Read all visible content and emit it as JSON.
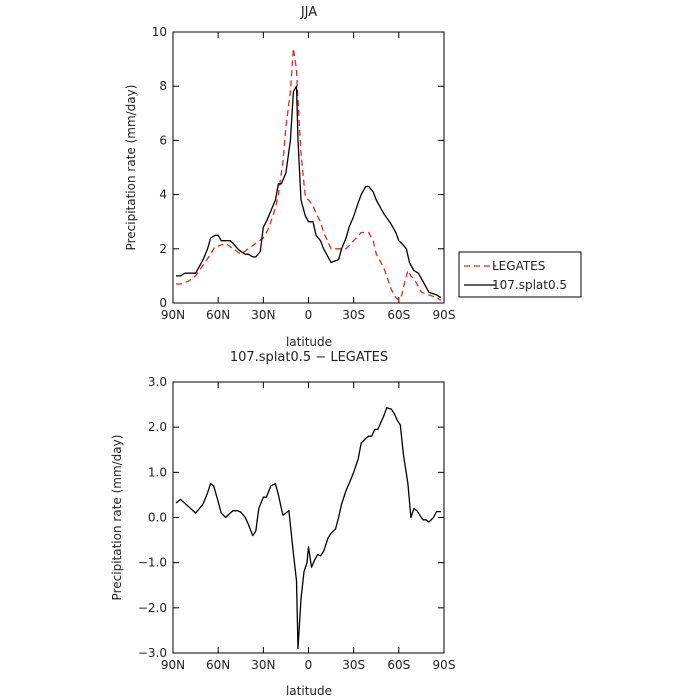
{
  "chart_data": [
    {
      "type": "line",
      "title": "JJA",
      "xlabel": "latitude",
      "ylabel": "Precipitation rate (mm/day)",
      "xlim": [
        90,
        -90
      ],
      "ylim": [
        0,
        10
      ],
      "x_ticks": [
        90,
        60,
        30,
        0,
        -30,
        -60,
        -90
      ],
      "x_tick_labels": [
        "90N",
        "60N",
        "30N",
        "0",
        "30S",
        "60S",
        "90S"
      ],
      "y_ticks": [
        0,
        2,
        4,
        6,
        8,
        10
      ],
      "y_tick_labels": [
        "0",
        "2",
        "4",
        "6",
        "8",
        "10"
      ],
      "legend": "right",
      "series": [
        {
          "name": "LEGATES",
          "color": "#e0281e",
          "dash": "dashed",
          "x": [
            88,
            85,
            80,
            75,
            70,
            65,
            62,
            60,
            55,
            50,
            45,
            40,
            35,
            30,
            27,
            25,
            22,
            20,
            17,
            15,
            12,
            10,
            8,
            7,
            5,
            3,
            2,
            0,
            -3,
            -5,
            -8,
            -10,
            -15,
            -20,
            -25,
            -30,
            -35,
            -40,
            -43,
            -45,
            -50,
            -55,
            -58,
            -60,
            -62,
            -64,
            -66,
            -68,
            -70,
            -73,
            -75,
            -80,
            -85,
            -88
          ],
          "y": [
            0.7,
            0.7,
            0.8,
            1.0,
            1.4,
            1.8,
            2.1,
            2.1,
            2.2,
            2.0,
            1.8,
            2.0,
            2.2,
            2.4,
            2.7,
            3.0,
            3.5,
            4.0,
            5.2,
            6.5,
            7.8,
            9.4,
            8.6,
            7.5,
            5.5,
            4.4,
            3.9,
            3.8,
            3.6,
            3.3,
            3.0,
            2.6,
            2.0,
            2.0,
            2.0,
            2.3,
            2.6,
            2.6,
            2.3,
            1.8,
            1.3,
            0.5,
            0.2,
            0.1,
            0.3,
            0.8,
            1.2,
            1.0,
            0.9,
            0.6,
            0.4,
            0.3,
            0.2,
            0.1
          ]
        },
        {
          "name": "107.splat0.5",
          "color": "#000000",
          "dash": "solid",
          "x": [
            88,
            85,
            82,
            80,
            75,
            73,
            70,
            67,
            65,
            62,
            60,
            58,
            55,
            52,
            50,
            47,
            45,
            42,
            40,
            37,
            35,
            32,
            30,
            28,
            25,
            22,
            20,
            18,
            15,
            12,
            10,
            8,
            7,
            5,
            3,
            2,
            0,
            -3,
            -5,
            -8,
            -10,
            -15,
            -20,
            -22,
            -25,
            -27,
            -30,
            -33,
            -35,
            -38,
            -40,
            -43,
            -45,
            -48,
            -50,
            -55,
            -58,
            -60,
            -62,
            -65,
            -67,
            -70,
            -73,
            -75,
            -80,
            -85,
            -88
          ],
          "y": [
            1.0,
            1.0,
            1.1,
            1.1,
            1.1,
            1.3,
            1.6,
            2.0,
            2.4,
            2.5,
            2.5,
            2.3,
            2.3,
            2.3,
            2.2,
            2.0,
            1.9,
            1.8,
            1.8,
            1.7,
            1.7,
            1.9,
            2.8,
            3.0,
            3.4,
            3.8,
            4.4,
            4.4,
            4.8,
            6.0,
            7.8,
            8.0,
            6.0,
            3.8,
            3.4,
            3.2,
            3.0,
            3.0,
            2.5,
            2.3,
            2.0,
            1.5,
            1.6,
            2.0,
            2.4,
            2.8,
            3.2,
            3.7,
            4.0,
            4.3,
            4.3,
            4.1,
            3.8,
            3.5,
            3.3,
            2.9,
            2.6,
            2.3,
            2.2,
            2.0,
            1.5,
            1.2,
            1.1,
            0.9,
            0.4,
            0.3,
            0.2
          ]
        }
      ]
    },
    {
      "type": "line",
      "title": "107.splat0.5 − LEGATES",
      "xlabel": "latitude",
      "ylabel": "Precipitation rate (mm/day)",
      "xlim": [
        90,
        -90
      ],
      "ylim": [
        -3,
        3
      ],
      "x_ticks": [
        90,
        60,
        30,
        0,
        -30,
        -60,
        -90
      ],
      "x_tick_labels": [
        "90N",
        "60N",
        "30N",
        "0",
        "30S",
        "60S",
        "90S"
      ],
      "y_ticks": [
        -3,
        -2,
        -1,
        0,
        1,
        2,
        3
      ],
      "y_tick_labels": [
        "−3.0",
        "−2.0",
        "−1.0",
        "0.0",
        "1.0",
        "2.0",
        "3.0"
      ],
      "series": [
        {
          "color": "#000000",
          "dash": "solid",
          "x": [
            88,
            85,
            80,
            75,
            70,
            67,
            65,
            63,
            60,
            58,
            55,
            52,
            50,
            47,
            45,
            42,
            40,
            37,
            35,
            33,
            30,
            28,
            25,
            22,
            20,
            18,
            17,
            15,
            13,
            10,
            8,
            7,
            5,
            3,
            1,
            0,
            -2,
            -4,
            -6,
            -8,
            -10,
            -13,
            -15,
            -18,
            -20,
            -22,
            -25,
            -27,
            -30,
            -33,
            -35,
            -38,
            -40,
            -42,
            -44,
            -46,
            -48,
            -50,
            -52,
            -55,
            -57,
            -59,
            -61,
            -63,
            -66,
            -68,
            -70,
            -72,
            -74,
            -76,
            -78,
            -80,
            -83,
            -85,
            -88
          ],
          "y": [
            0.32,
            0.4,
            0.25,
            0.1,
            0.3,
            0.55,
            0.75,
            0.7,
            0.35,
            0.1,
            0.0,
            0.1,
            0.15,
            0.15,
            0.12,
            0.0,
            -0.15,
            -0.4,
            -0.3,
            0.2,
            0.45,
            0.45,
            0.7,
            0.75,
            0.5,
            0.2,
            0.05,
            0.1,
            0.15,
            -0.8,
            -1.4,
            -2.9,
            -1.8,
            -1.2,
            -1.0,
            -0.65,
            -1.1,
            -0.95,
            -0.82,
            -0.85,
            -0.75,
            -0.45,
            -0.35,
            -0.25,
            0.0,
            0.3,
            0.6,
            0.75,
            1.0,
            1.3,
            1.65,
            1.75,
            1.8,
            1.8,
            1.95,
            1.95,
            2.1,
            2.25,
            2.43,
            2.4,
            2.3,
            2.15,
            2.05,
            1.4,
            0.75,
            0.0,
            0.2,
            0.15,
            0.05,
            -0.05,
            -0.05,
            -0.1,
            0.0,
            0.13,
            0.13
          ]
        }
      ]
    }
  ]
}
